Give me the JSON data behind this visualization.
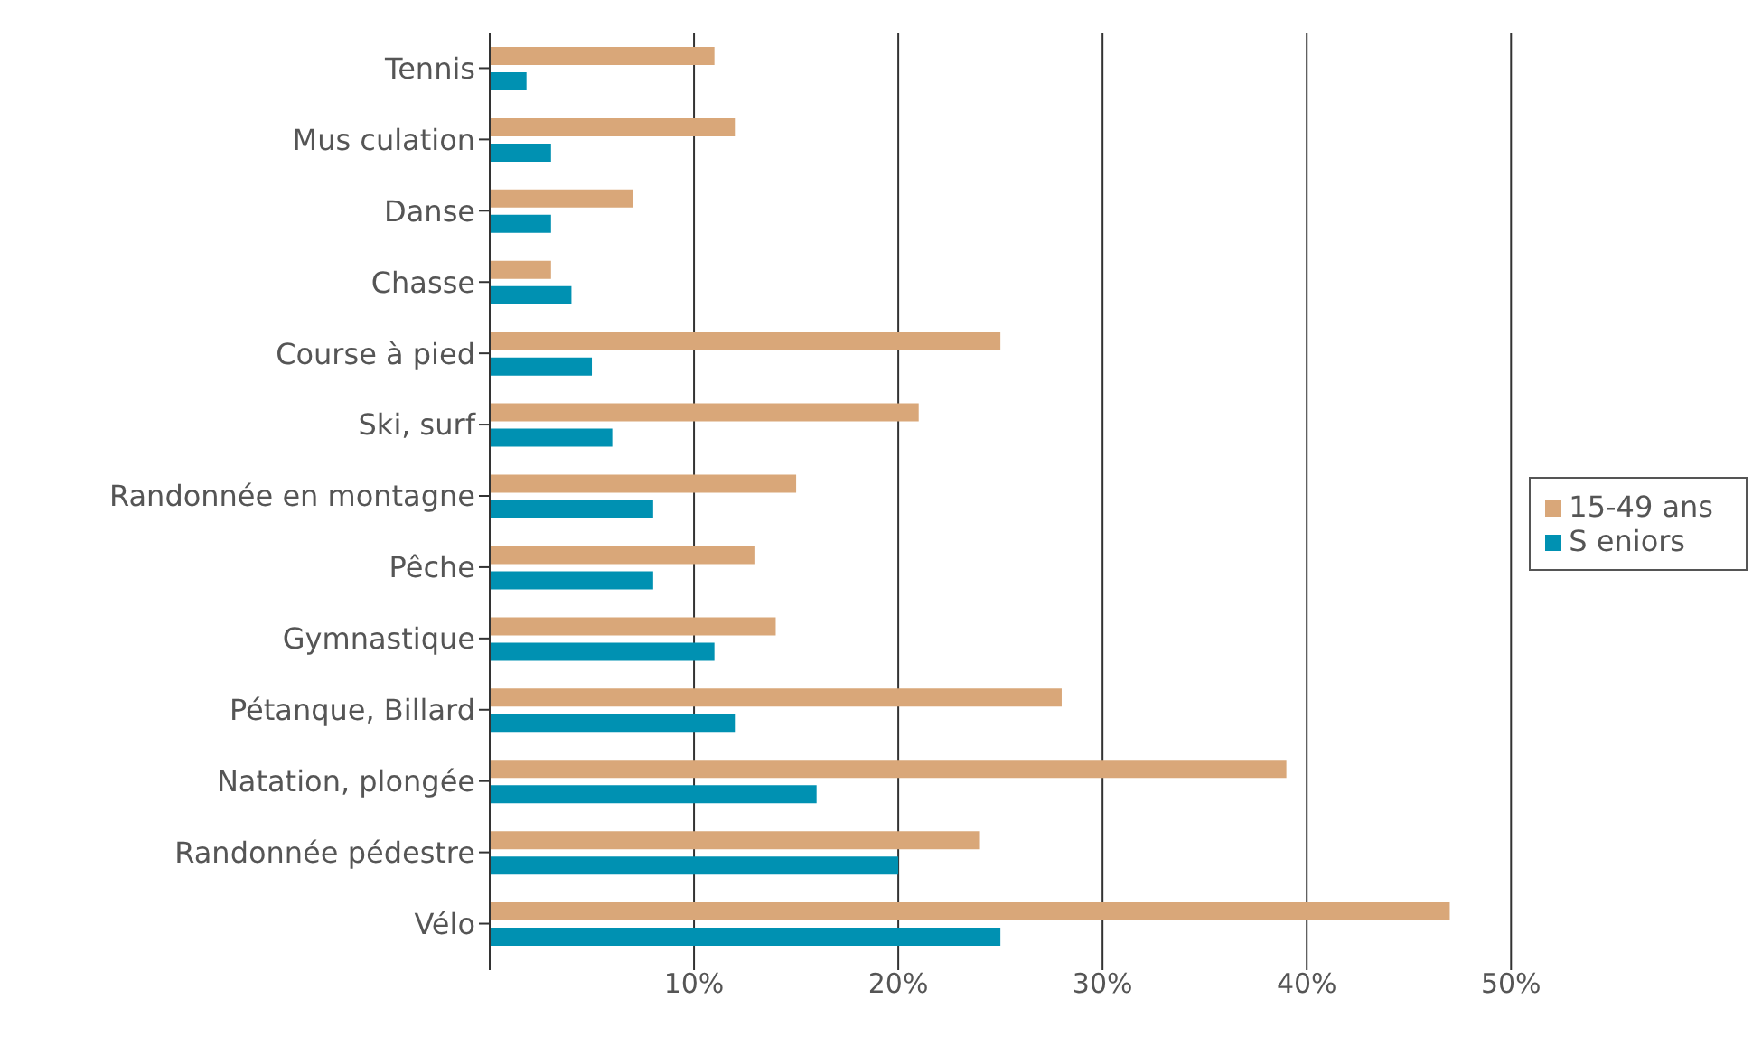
{
  "chart_data": {
    "type": "bar",
    "orientation": "horizontal",
    "categories": [
      "Tennis",
      "Mus culation",
      "Danse",
      "Chasse",
      "Course à pied",
      "Ski, surf",
      "Randonnée en montagne",
      "Pêche",
      "Gymnastique",
      "Pétanque, Billard",
      "Natation, plongée",
      "Randonnée pédestre",
      "Vélo"
    ],
    "series": [
      {
        "name": "15-49 ans",
        "color": "#d9a779",
        "values": [
          11,
          12,
          7,
          3,
          25,
          21,
          15,
          13,
          14,
          28,
          39,
          24,
          47
        ]
      },
      {
        "name": "S eniors",
        "color": "#0091b2",
        "values": [
          1.8,
          3,
          3,
          4,
          5,
          6,
          8,
          8,
          11,
          12,
          16,
          20,
          25
        ]
      }
    ],
    "xlim": [
      0,
      50
    ],
    "xticks": [
      {
        "value": 0,
        "label": null
      },
      {
        "value": 10,
        "label": "10%"
      },
      {
        "value": 20,
        "label": "20%"
      },
      {
        "value": 30,
        "label": "30%"
      },
      {
        "value": 40,
        "label": "40%"
      },
      {
        "value": 50,
        "label": "50%"
      }
    ],
    "grid": "x",
    "legend": "right"
  }
}
